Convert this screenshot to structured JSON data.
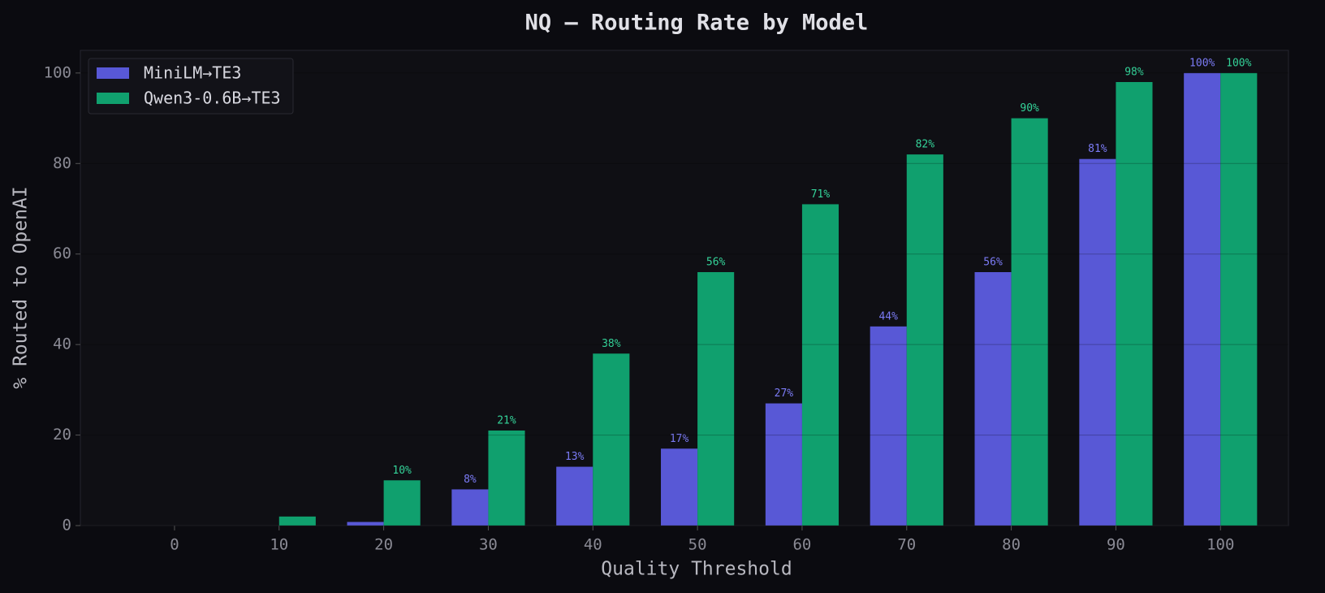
{
  "chart_data": {
    "type": "bar",
    "title": "NQ — Routing Rate by Model",
    "x_label": "Quality Threshold",
    "y_label": "% Routed to OpenAI",
    "categories": [
      0,
      10,
      20,
      30,
      40,
      50,
      60,
      70,
      80,
      90,
      100
    ],
    "series": [
      {
        "name": "MiniLM→TE3",
        "color": "#5858d6",
        "label_color": "#7b7bf5",
        "values": [
          0,
          0,
          0.8,
          8,
          13,
          17,
          27,
          44,
          56,
          81,
          100
        ],
        "value_labels": [
          null,
          null,
          null,
          "8%",
          "13%",
          "17%",
          "27%",
          "44%",
          "56%",
          "81%",
          "100%"
        ]
      },
      {
        "name": "Qwen3-0.6B→TE3",
        "color": "#10a06e",
        "label_color": "#34d399",
        "values": [
          0,
          2,
          10,
          21,
          38,
          56,
          71,
          82,
          90,
          98,
          100
        ],
        "value_labels": [
          null,
          null,
          "10%",
          "21%",
          "38%",
          "56%",
          "71%",
          "82%",
          "90%",
          "98%",
          "100%"
        ]
      }
    ],
    "xlim": [
      -9,
      106.5
    ],
    "ylim": [
      0,
      105
    ],
    "yticks": [
      0,
      20,
      40,
      60,
      80,
      100
    ],
    "grid": true,
    "legend": "upper left"
  }
}
